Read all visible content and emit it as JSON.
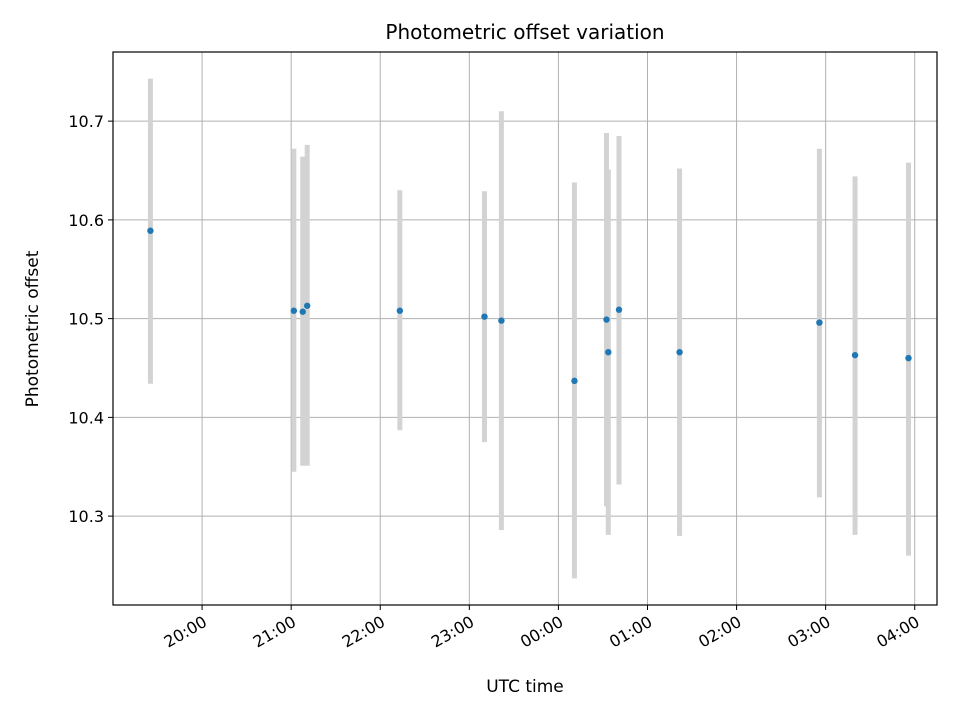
{
  "chart_data": {
    "type": "scatter",
    "title": "Photometric offset variation",
    "xlabel": "UTC time",
    "ylabel": "Photometric offset",
    "x_axis": {
      "unit": "hours since 19:00 UTC",
      "range": [
        0.0,
        9.25
      ],
      "ticks": [
        {
          "x": 1,
          "label": "20:00"
        },
        {
          "x": 2,
          "label": "21:00"
        },
        {
          "x": 3,
          "label": "22:00"
        },
        {
          "x": 4,
          "label": "23:00"
        },
        {
          "x": 5,
          "label": "00:00"
        },
        {
          "x": 6,
          "label": "01:00"
        },
        {
          "x": 7,
          "label": "02:00"
        },
        {
          "x": 8,
          "label": "03:00"
        },
        {
          "x": 9,
          "label": "04:00"
        }
      ]
    },
    "y_axis": {
      "range": [
        10.21,
        10.77
      ],
      "ticks": [
        {
          "y": 10.3,
          "label": "10.3"
        },
        {
          "y": 10.4,
          "label": "10.4"
        },
        {
          "y": 10.5,
          "label": "10.5"
        },
        {
          "y": 10.6,
          "label": "10.6"
        },
        {
          "y": 10.7,
          "label": "10.7"
        }
      ]
    },
    "grid": true,
    "legend": "none",
    "colors": {
      "point": "#1f77b4",
      "errorbar": "#d3d3d3",
      "grid": "#b0b0b0",
      "axes": "#000000"
    },
    "points": [
      {
        "x": 0.42,
        "y": 10.589,
        "lo": 10.434,
        "hi": 10.743
      },
      {
        "x": 2.03,
        "y": 10.508,
        "lo": 10.345,
        "hi": 10.672
      },
      {
        "x": 2.13,
        "y": 10.507,
        "lo": 10.351,
        "hi": 10.664
      },
      {
        "x": 2.18,
        "y": 10.513,
        "lo": 10.351,
        "hi": 10.676
      },
      {
        "x": 3.22,
        "y": 10.508,
        "lo": 10.387,
        "hi": 10.63
      },
      {
        "x": 4.17,
        "y": 10.502,
        "lo": 10.375,
        "hi": 10.629
      },
      {
        "x": 4.36,
        "y": 10.498,
        "lo": 10.286,
        "hi": 10.71
      },
      {
        "x": 5.18,
        "y": 10.437,
        "lo": 10.237,
        "hi": 10.638
      },
      {
        "x": 5.54,
        "y": 10.499,
        "lo": 10.31,
        "hi": 10.688
      },
      {
        "x": 5.56,
        "y": 10.466,
        "lo": 10.281,
        "hi": 10.651
      },
      {
        "x": 5.68,
        "y": 10.509,
        "lo": 10.332,
        "hi": 10.685
      },
      {
        "x": 6.36,
        "y": 10.466,
        "lo": 10.28,
        "hi": 10.652
      },
      {
        "x": 7.93,
        "y": 10.496,
        "lo": 10.319,
        "hi": 10.672
      },
      {
        "x": 8.33,
        "y": 10.463,
        "lo": 10.281,
        "hi": 10.644
      },
      {
        "x": 8.93,
        "y": 10.46,
        "lo": 10.26,
        "hi": 10.658
      }
    ]
  }
}
